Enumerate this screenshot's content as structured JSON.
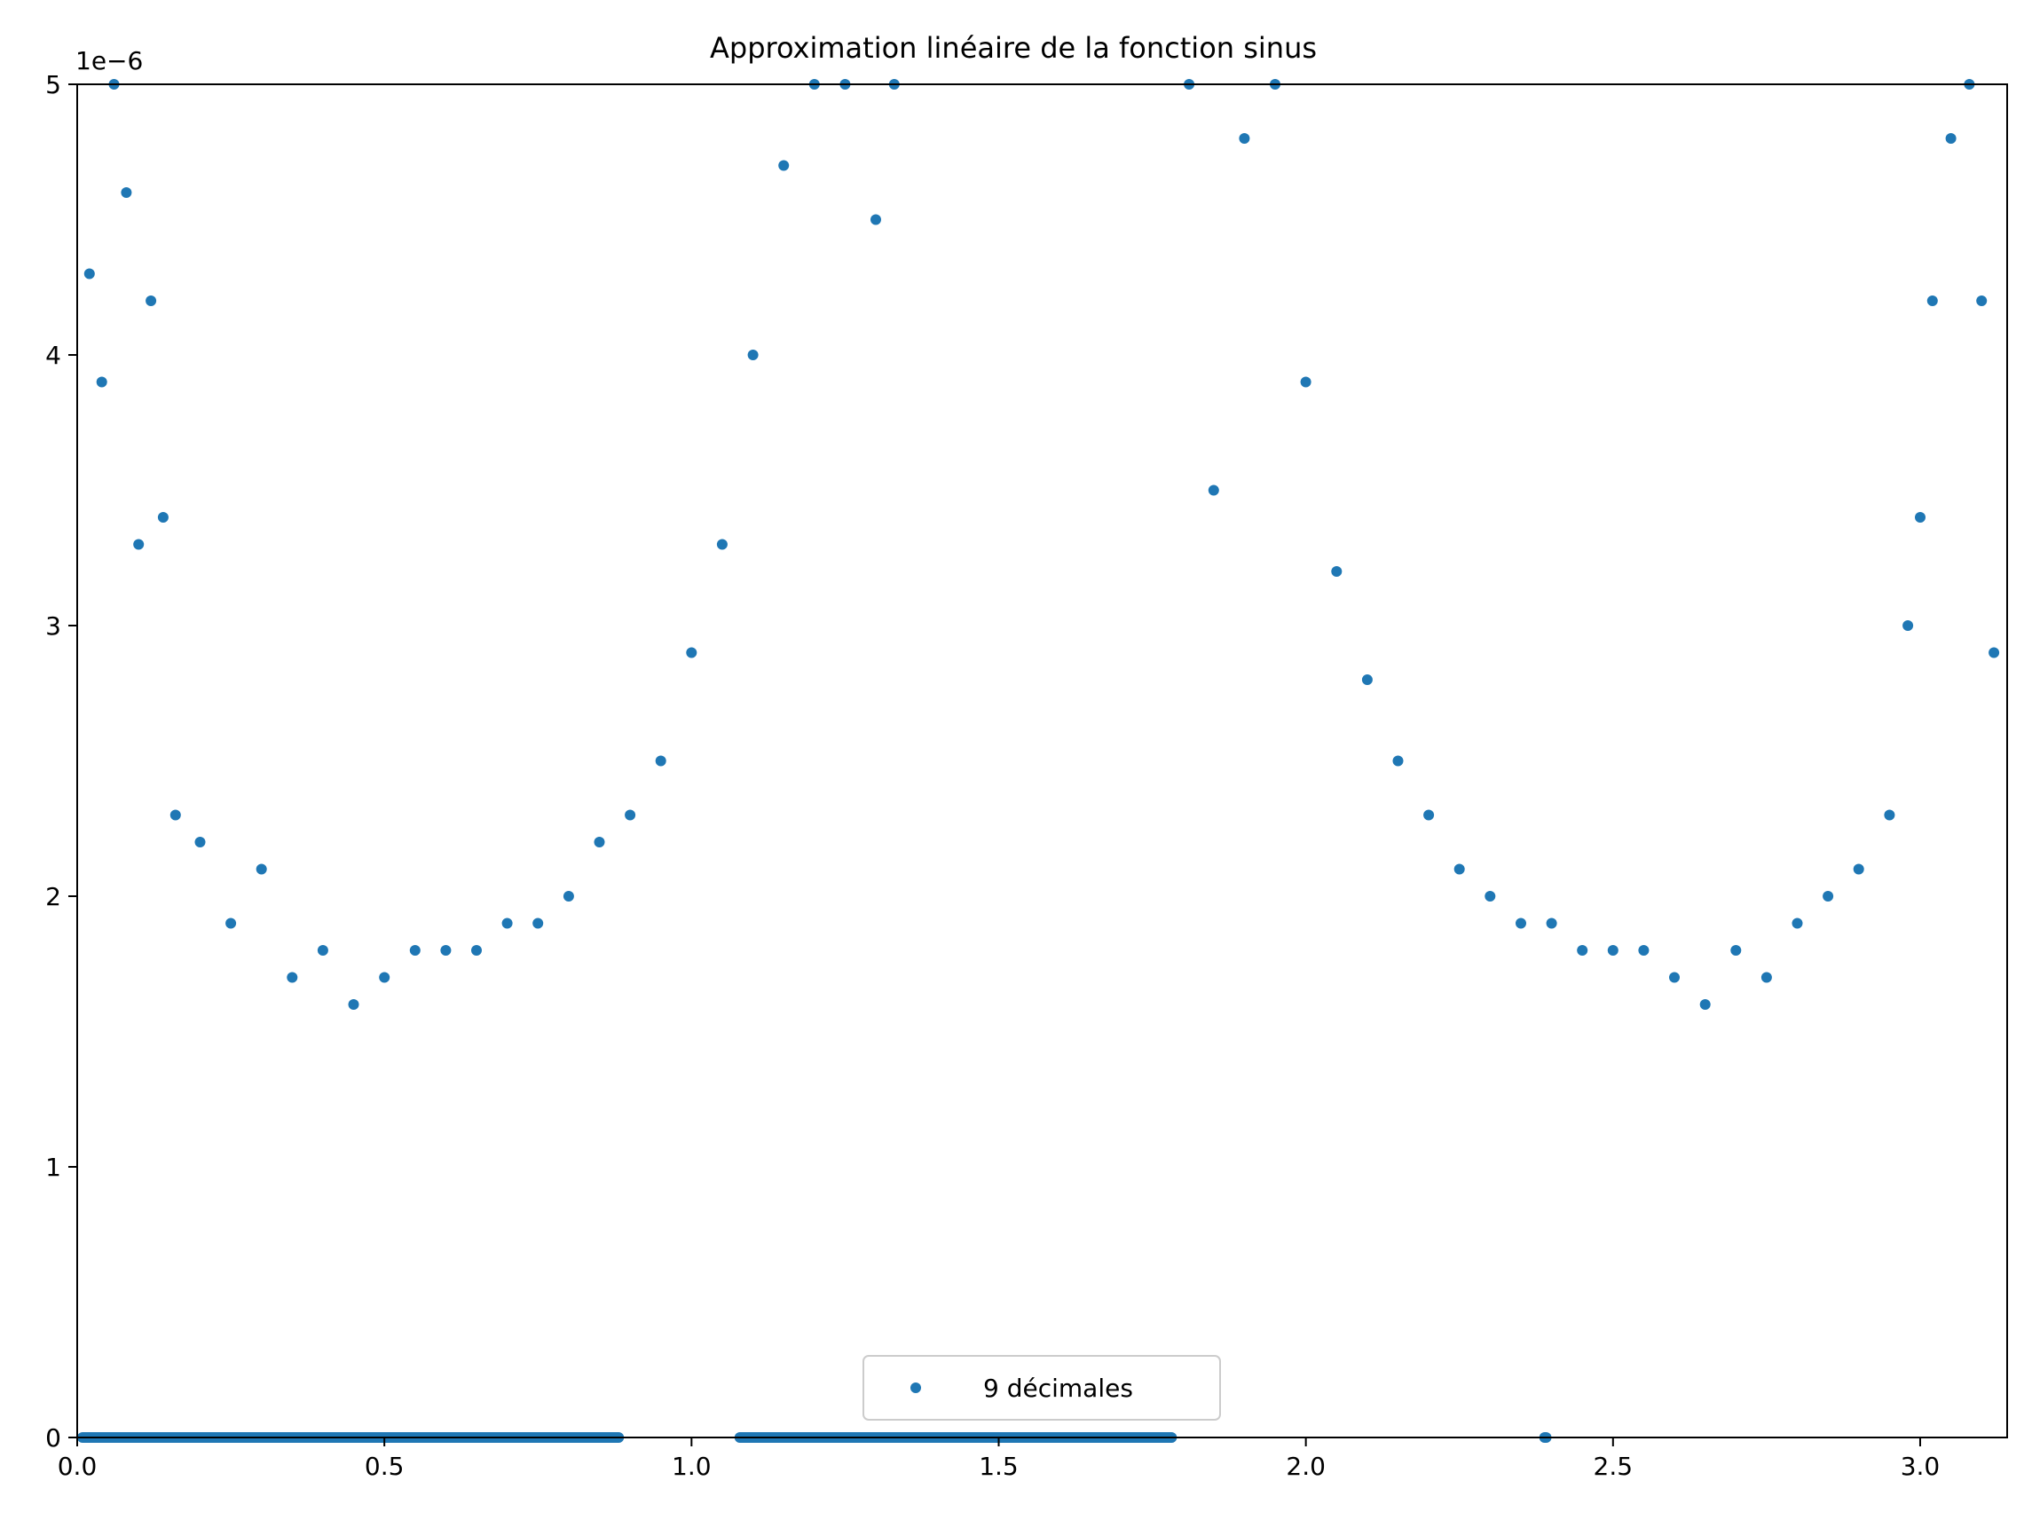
{
  "chart_data": {
    "type": "scatter",
    "title": "Approximation linéaire de la fonction sinus",
    "xlabel": "",
    "ylabel": "",
    "xlim": [
      0,
      3.14159
    ],
    "ylim": [
      0,
      5e-06
    ],
    "y_scale_label": "1e−6",
    "grid": false,
    "legend_position": "lower center",
    "x_ticks": [
      {
        "value": 0.0,
        "label": "0.0"
      },
      {
        "value": 0.5,
        "label": "0.5"
      },
      {
        "value": 1.0,
        "label": "1.0"
      },
      {
        "value": 1.5,
        "label": "1.5"
      },
      {
        "value": 2.0,
        "label": "2.0"
      },
      {
        "value": 2.5,
        "label": "2.5"
      },
      {
        "value": 3.0,
        "label": "3.0"
      }
    ],
    "y_ticks": [
      {
        "value": 0,
        "label": "0"
      },
      {
        "value": 1e-06,
        "label": "1"
      },
      {
        "value": 2e-06,
        "label": "2"
      },
      {
        "value": 3e-06,
        "label": "3"
      },
      {
        "value": 4e-06,
        "label": "4"
      },
      {
        "value": 5e-06,
        "label": "5"
      }
    ],
    "series": [
      {
        "name": "9 décimales",
        "color": "#1f77b4",
        "marker": "circle",
        "x_range": [
          0,
          3.14159
        ],
        "points": [
          [
            0.02,
            4.3e-06
          ],
          [
            0.04,
            3.9e-06
          ],
          [
            0.06,
            5e-06
          ],
          [
            0.08,
            4.6e-06
          ],
          [
            0.1,
            3.3e-06
          ],
          [
            0.12,
            4.2e-06
          ],
          [
            0.14,
            3.4e-06
          ],
          [
            0.16,
            2.3e-06
          ],
          [
            0.2,
            2.2e-06
          ],
          [
            0.25,
            1.9e-06
          ],
          [
            0.3,
            2.1e-06
          ],
          [
            0.35,
            1.7e-06
          ],
          [
            0.4,
            1.8e-06
          ],
          [
            0.45,
            1.6e-06
          ],
          [
            0.5,
            1.7e-06
          ],
          [
            0.55,
            1.8e-06
          ],
          [
            0.6,
            1.8e-06
          ],
          [
            0.65,
            1.8e-06
          ],
          [
            0.7,
            1.9e-06
          ],
          [
            0.75,
            1.9e-06
          ],
          [
            0.8,
            2e-06
          ],
          [
            0.85,
            2.2e-06
          ],
          [
            0.9,
            2.3e-06
          ],
          [
            0.95,
            2.5e-06
          ],
          [
            1.0,
            2.9e-06
          ],
          [
            1.05,
            3.3e-06
          ],
          [
            1.1,
            4e-06
          ],
          [
            1.15,
            4.7e-06
          ],
          [
            1.2,
            5e-06
          ],
          [
            1.25,
            5e-06
          ],
          [
            1.3,
            4.5e-06
          ],
          [
            1.33,
            5e-06
          ],
          [
            1.81,
            5e-06
          ],
          [
            1.85,
            3.5e-06
          ],
          [
            1.9,
            4.8e-06
          ],
          [
            1.95,
            5e-06
          ],
          [
            2.0,
            3.9e-06
          ],
          [
            2.05,
            3.2e-06
          ],
          [
            2.1,
            2.8e-06
          ],
          [
            2.15,
            2.5e-06
          ],
          [
            2.2,
            2.3e-06
          ],
          [
            2.25,
            2.1e-06
          ],
          [
            2.3,
            2e-06
          ],
          [
            2.35,
            1.9e-06
          ],
          [
            2.4,
            1.9e-06
          ],
          [
            2.45,
            1.8e-06
          ],
          [
            2.5,
            1.8e-06
          ],
          [
            2.55,
            1.8e-06
          ],
          [
            2.6,
            1.7e-06
          ],
          [
            2.65,
            1.6e-06
          ],
          [
            2.7,
            1.8e-06
          ],
          [
            2.75,
            1.7e-06
          ],
          [
            2.8,
            1.9e-06
          ],
          [
            2.85,
            2e-06
          ],
          [
            2.9,
            2.1e-06
          ],
          [
            2.95,
            2.3e-06
          ],
          [
            2.98,
            3e-06
          ],
          [
            3.0,
            3.4e-06
          ],
          [
            3.02,
            4.2e-06
          ],
          [
            3.05,
            4.8e-06
          ],
          [
            3.08,
            5e-06
          ],
          [
            3.1,
            4.2e-06
          ],
          [
            3.12,
            2.9e-06
          ]
        ],
        "zero_bands": [
          [
            0.0,
            0.89
          ],
          [
            1.07,
            1.79
          ],
          [
            2.38,
            2.4
          ]
        ]
      }
    ]
  }
}
